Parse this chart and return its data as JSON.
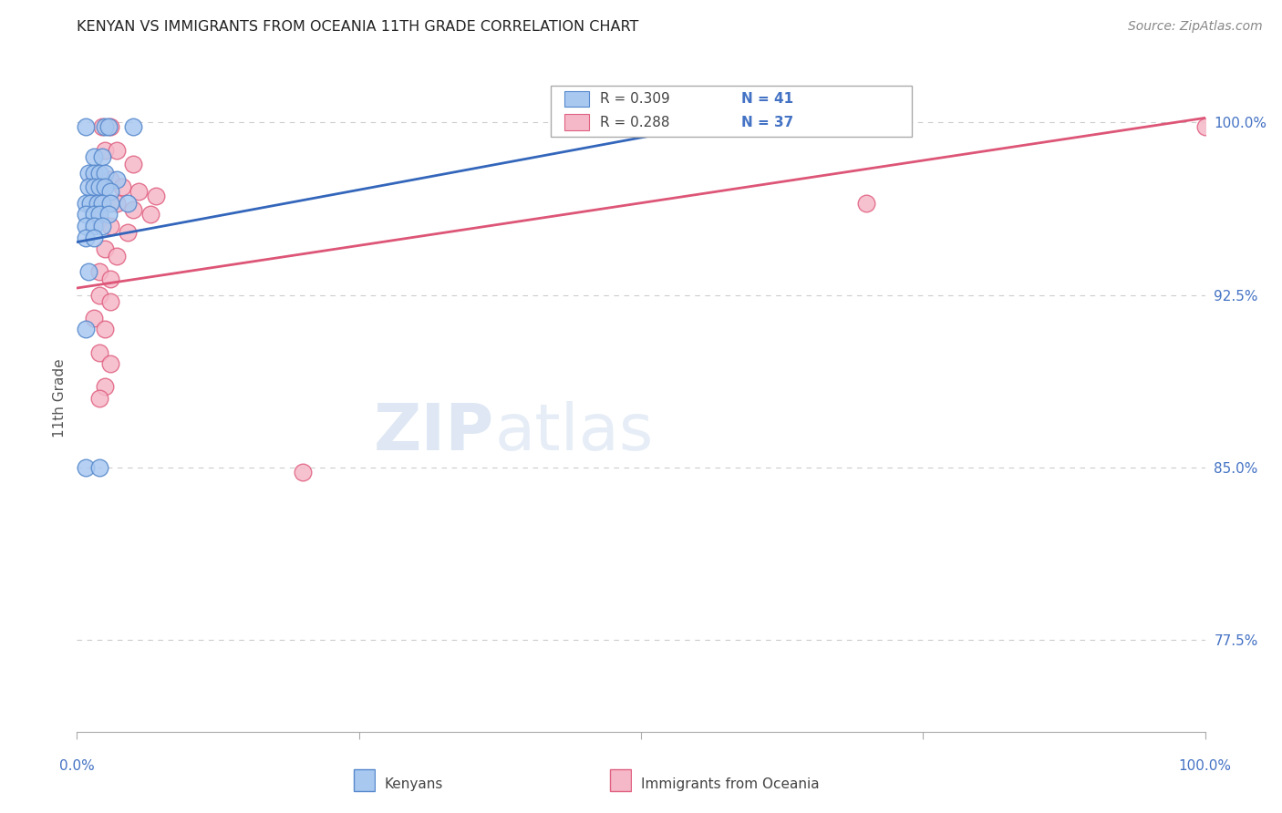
{
  "title": "KENYAN VS IMMIGRANTS FROM OCEANIA 11TH GRADE CORRELATION CHART",
  "source": "Source: ZipAtlas.com",
  "ylabel": "11th Grade",
  "y_ticks": [
    77.5,
    85.0,
    92.5,
    100.0
  ],
  "y_tick_labels": [
    "77.5%",
    "85.0%",
    "92.5%",
    "100.0%"
  ],
  "xmin": 0.0,
  "xmax": 100.0,
  "ymin": 73.5,
  "ymax": 102.5,
  "blue_color": "#A8C8F0",
  "pink_color": "#F5B8C8",
  "blue_edge_color": "#5588CC",
  "pink_edge_color": "#E06080",
  "blue_line_color": "#3366BB",
  "pink_line_color": "#DD5577",
  "blue_scatter": [
    [
      0.8,
      99.8
    ],
    [
      2.5,
      99.8
    ],
    [
      2.8,
      99.8
    ],
    [
      5.0,
      99.8
    ],
    [
      1.5,
      98.5
    ],
    [
      2.2,
      98.5
    ],
    [
      1.0,
      97.8
    ],
    [
      1.5,
      97.8
    ],
    [
      2.0,
      97.8
    ],
    [
      2.5,
      97.8
    ],
    [
      3.5,
      97.5
    ],
    [
      1.0,
      97.2
    ],
    [
      1.5,
      97.2
    ],
    [
      2.0,
      97.2
    ],
    [
      2.5,
      97.2
    ],
    [
      3.0,
      97.0
    ],
    [
      0.8,
      96.5
    ],
    [
      1.2,
      96.5
    ],
    [
      1.8,
      96.5
    ],
    [
      2.2,
      96.5
    ],
    [
      3.0,
      96.5
    ],
    [
      4.5,
      96.5
    ],
    [
      0.8,
      96.0
    ],
    [
      1.5,
      96.0
    ],
    [
      2.0,
      96.0
    ],
    [
      2.8,
      96.0
    ],
    [
      0.8,
      95.5
    ],
    [
      1.5,
      95.5
    ],
    [
      2.2,
      95.5
    ],
    [
      0.8,
      95.0
    ],
    [
      1.5,
      95.0
    ],
    [
      1.0,
      93.5
    ],
    [
      0.8,
      91.0
    ],
    [
      0.8,
      85.0
    ],
    [
      2.0,
      85.0
    ],
    [
      55.0,
      99.8
    ]
  ],
  "pink_scatter": [
    [
      2.2,
      99.8
    ],
    [
      3.0,
      99.8
    ],
    [
      2.5,
      98.8
    ],
    [
      3.5,
      98.8
    ],
    [
      5.0,
      98.2
    ],
    [
      1.5,
      97.5
    ],
    [
      3.0,
      97.5
    ],
    [
      4.0,
      97.2
    ],
    [
      5.5,
      97.0
    ],
    [
      7.0,
      96.8
    ],
    [
      2.0,
      96.8
    ],
    [
      3.5,
      96.5
    ],
    [
      5.0,
      96.2
    ],
    [
      6.5,
      96.0
    ],
    [
      2.0,
      95.8
    ],
    [
      3.0,
      95.5
    ],
    [
      4.5,
      95.2
    ],
    [
      2.5,
      94.5
    ],
    [
      3.5,
      94.2
    ],
    [
      2.0,
      93.5
    ],
    [
      3.0,
      93.2
    ],
    [
      2.0,
      92.5
    ],
    [
      3.0,
      92.2
    ],
    [
      1.5,
      91.5
    ],
    [
      2.5,
      91.0
    ],
    [
      2.0,
      90.0
    ],
    [
      3.0,
      89.5
    ],
    [
      2.5,
      88.5
    ],
    [
      2.0,
      88.0
    ],
    [
      20.0,
      84.8
    ],
    [
      70.0,
      96.5
    ],
    [
      100.0,
      99.8
    ]
  ],
  "blue_trendline_x": [
    0.0,
    55.0
  ],
  "blue_trendline_y": [
    94.8,
    99.8
  ],
  "pink_trendline_x": [
    0.0,
    100.0
  ],
  "pink_trendline_y": [
    92.8,
    100.2
  ],
  "watermark_text": "ZIPatlas",
  "grid_color": "#CCCCCC",
  "bg_color": "#FFFFFF",
  "tick_color": "#4472C4",
  "legend_blue_r": "R = 0.309",
  "legend_blue_n": "N = 41",
  "legend_pink_r": "R = 0.288",
  "legend_pink_n": "N = 37"
}
